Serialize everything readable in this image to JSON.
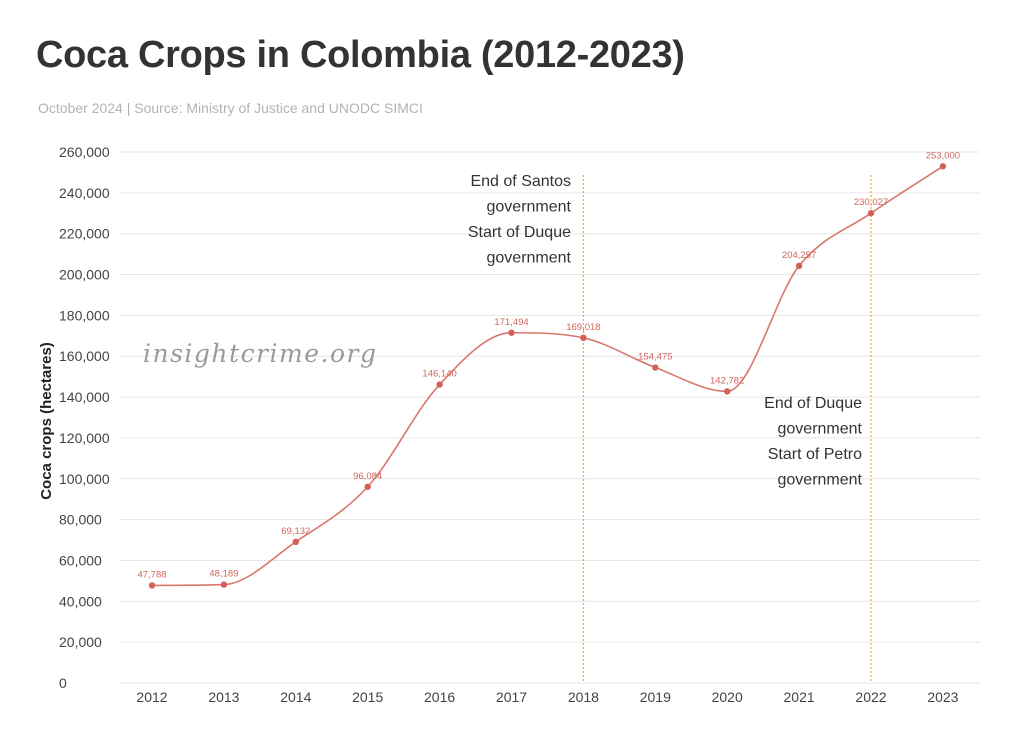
{
  "title": "Coca Crops in Colombia (2012-2023)",
  "subtitle": "October 2024 | Source: Ministry of Justice and UNODC SIMCI",
  "watermark": "insightcrime.org",
  "colors": {
    "line": "#d9766d",
    "point": "#d4605a",
    "marker": "#e0b43a",
    "grid": "#e6e6e6"
  },
  "chart_data": {
    "type": "line",
    "title": "Coca Crops in Colombia (2012-2023)",
    "xlabel": "",
    "ylabel": "Coca crops (hectares)",
    "ylim": [
      0,
      260000
    ],
    "yticks": [
      0,
      20000,
      40000,
      60000,
      80000,
      100000,
      120000,
      140000,
      160000,
      180000,
      200000,
      220000,
      240000,
      260000
    ],
    "ytick_labels": [
      "0",
      "20,000",
      "40,000",
      "60,000",
      "80,000",
      "100,000",
      "120,000",
      "140,000",
      "160,000",
      "180,000",
      "200,000",
      "220,000",
      "240,000",
      "260,000"
    ],
    "grid": true,
    "categories": [
      "2012",
      "2013",
      "2014",
      "2015",
      "2016",
      "2017",
      "2018",
      "2019",
      "2020",
      "2021",
      "2022",
      "2023"
    ],
    "series": [
      {
        "name": "Coca crops (hectares)",
        "values": [
          47788,
          48189,
          69132,
          96084,
          146140,
          171494,
          169018,
          154475,
          142782,
          204257,
          230027,
          253000
        ],
        "labels": [
          "47,788",
          "48,189",
          "69,132",
          "96,084",
          "146,140",
          "171,494",
          "169,018",
          "154,475",
          "142,782",
          "204,257",
          "230,027",
          "253,000"
        ]
      }
    ],
    "annotations": [
      {
        "x": "2018",
        "lines": [
          "End of Santos",
          "government",
          "Start of Duque",
          "government"
        ]
      },
      {
        "x": "2022",
        "lines": [
          "End of Duque",
          "government",
          "Start of Petro",
          "government"
        ]
      }
    ]
  }
}
